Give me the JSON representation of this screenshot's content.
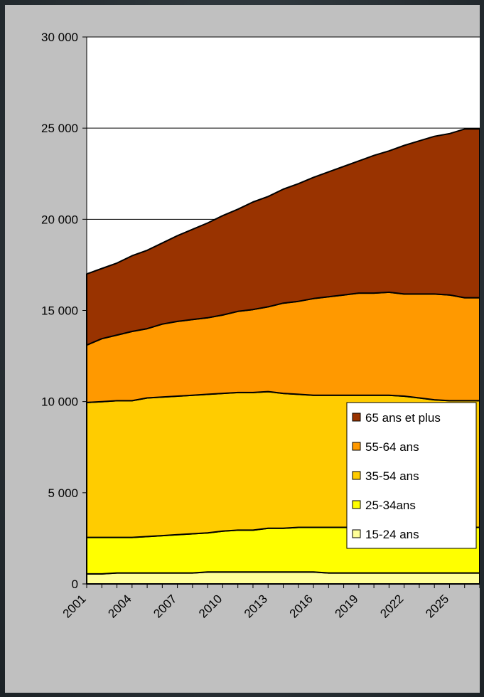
{
  "chart_data": {
    "type": "area",
    "stacked": true,
    "title": "",
    "xlabel": "",
    "ylabel": "",
    "ylim": [
      0,
      30000
    ],
    "grid": true,
    "legend_position": "right",
    "x": [
      2001,
      2002,
      2003,
      2004,
      2005,
      2006,
      2007,
      2008,
      2009,
      2010,
      2011,
      2012,
      2013,
      2014,
      2015,
      2016,
      2017,
      2018,
      2019,
      2020,
      2021,
      2022,
      2023,
      2024,
      2025,
      2026,
      2027
    ],
    "x_tick_labels": [
      "2001",
      "2004",
      "2007",
      "2010",
      "2013",
      "2016",
      "2019",
      "2022",
      "2025"
    ],
    "y_tick_labels": [
      "0",
      "5 000",
      "10 000",
      "15 000",
      "20 000",
      "25 000",
      "30 000"
    ],
    "y_ticks": [
      0,
      5000,
      10000,
      15000,
      20000,
      25000,
      30000
    ],
    "totals": [
      17000,
      17300,
      17600,
      18000,
      18300,
      18700,
      19100,
      19450,
      19800,
      20200,
      20550,
      20950,
      21250,
      21650,
      21950,
      22300,
      22600,
      22900,
      23200,
      23500,
      23750,
      24050,
      24300,
      24550,
      24700,
      24950,
      24950
    ],
    "series": [
      {
        "name": "15-24 ans",
        "color": "#ffff99",
        "values": [
          550,
          550,
          600,
          600,
          600,
          600,
          600,
          600,
          650,
          650,
          650,
          650,
          650,
          650,
          650,
          650,
          600,
          600,
          600,
          600,
          600,
          600,
          600,
          600,
          600,
          600,
          600
        ]
      },
      {
        "name": "25-34ans",
        "color": "#ffff00",
        "values": [
          2000,
          2000,
          1950,
          1950,
          2000,
          2050,
          2100,
          2150,
          2150,
          2250,
          2300,
          2300,
          2400,
          2400,
          2450,
          2450,
          2500,
          2500,
          2500,
          2500,
          2500,
          2550,
          2550,
          2550,
          2550,
          2500,
          2500
        ]
      },
      {
        "name": "35-54 ans",
        "color": "#ffcc00",
        "values": [
          7400,
          7450,
          7500,
          7500,
          7600,
          7600,
          7600,
          7600,
          7600,
          7550,
          7550,
          7550,
          7500,
          7400,
          7300,
          7250,
          7250,
          7250,
          7250,
          7250,
          7250,
          7150,
          7050,
          6950,
          6900,
          6950,
          6950
        ]
      },
      {
        "name": "55-64 ans",
        "color": "#ff9900",
        "values": [
          3150,
          3450,
          3600,
          3800,
          3800,
          4000,
          4100,
          4150,
          4200,
          4300,
          4450,
          4550,
          4650,
          4950,
          5100,
          5300,
          5400,
          5500,
          5600,
          5600,
          5650,
          5600,
          5700,
          5800,
          5800,
          5650,
          5650
        ]
      },
      {
        "name": "65 ans et plus",
        "color": "#993300",
        "values": [
          3900,
          3850,
          3950,
          4150,
          4300,
          4450,
          4700,
          4950,
          5200,
          5450,
          5600,
          5900,
          6050,
          6250,
          6450,
          6650,
          6850,
          7050,
          7250,
          7550,
          7750,
          8150,
          8400,
          8650,
          8850,
          9250,
          9250
        ]
      }
    ],
    "legend_order": [
      "65 ans et plus",
      "55-64 ans",
      "35-54 ans",
      "25-34ans",
      "15-24 ans"
    ]
  }
}
